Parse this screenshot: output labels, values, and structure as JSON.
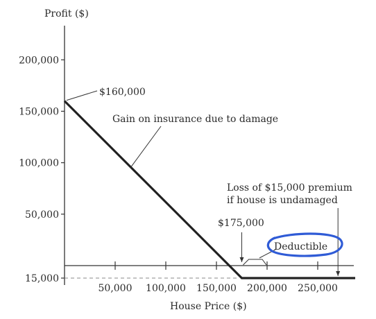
{
  "chart_data": {
    "type": "line",
    "title": "",
    "ylabel": "Profit ($)",
    "xlabel": "House Price ($)",
    "xlim": [
      0,
      287000
    ],
    "y_ticks": [
      {
        "value": 200000,
        "label": "200,000"
      },
      {
        "value": 150000,
        "label": "150,000"
      },
      {
        "value": 100000,
        "label": "100,000"
      },
      {
        "value": 50000,
        "label": "50,000"
      },
      {
        "value": -15000,
        "label": "15,000"
      }
    ],
    "x_ticks": [
      {
        "value": 50000,
        "label": "50,000"
      },
      {
        "value": 100000,
        "label": "100,000"
      },
      {
        "value": 150000,
        "label": "150,000"
      },
      {
        "value": 200000,
        "label": "200,000"
      },
      {
        "value": 250000,
        "label": "250,000"
      }
    ],
    "series": [
      {
        "x": [
          0,
          175000,
          287000
        ],
        "y": [
          160000,
          -15000,
          -15000
        ]
      }
    ],
    "annotations": {
      "peak": {
        "text": "$160,000",
        "x": 0,
        "y": 160000
      },
      "gain": {
        "text": "Gain on insurance due to damage",
        "x": 65000,
        "y": 95000
      },
      "kink": {
        "text": "$175,000",
        "x": 175000,
        "y": -15000
      },
      "deductible": {
        "text": "Deductible",
        "x_from": 175000,
        "x_to": 200000
      },
      "loss_line1": "Loss of $15,000 premium",
      "loss_line2": "if house is undamaged",
      "loss_arrow_x": 270000
    },
    "colors": {
      "line": "#222222",
      "axis": "#333333",
      "highlight": "#2f5bd6"
    },
    "grid": false,
    "legend": "none"
  }
}
